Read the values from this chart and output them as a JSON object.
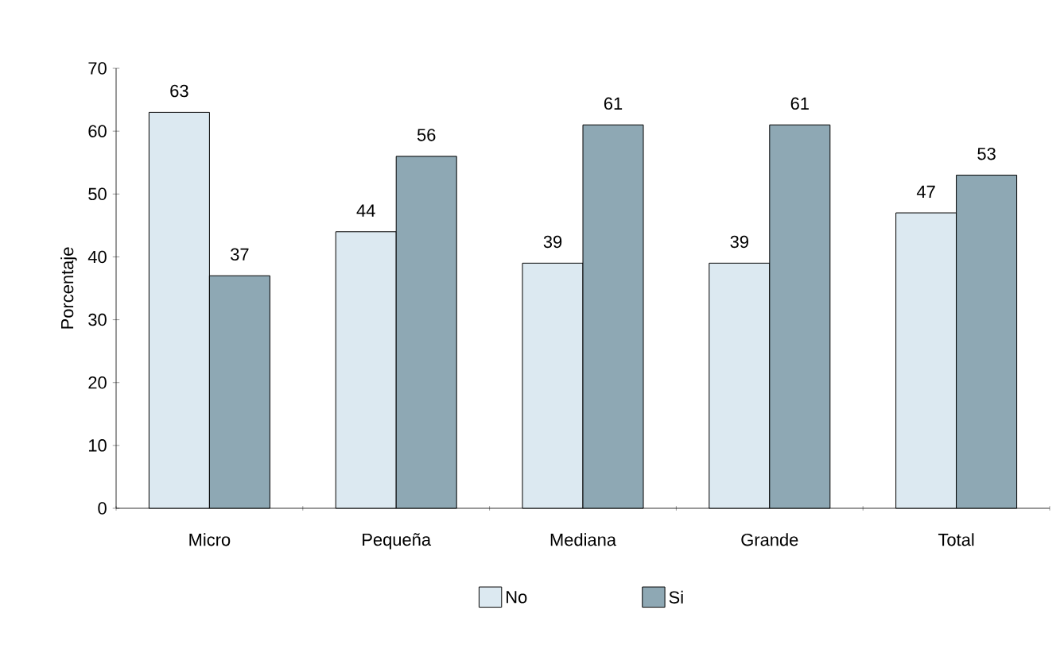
{
  "chart_data": {
    "type": "bar",
    "ylabel": "Porcentaje",
    "categories": [
      "Micro",
      "Pequeña",
      "Mediana",
      "Grande",
      "Total"
    ],
    "series": [
      {
        "name": "No",
        "color": "#dce9f1",
        "values": [
          63,
          44,
          39,
          39,
          47
        ]
      },
      {
        "name": "Si",
        "color": "#8ea8b4",
        "values": [
          37,
          56,
          61,
          61,
          53
        ]
      }
    ],
    "ylim": [
      0,
      70
    ],
    "yticks": [
      0,
      10,
      20,
      30,
      40,
      50,
      60,
      70
    ],
    "data_labels": true,
    "grid": false,
    "legend": "bottom"
  }
}
